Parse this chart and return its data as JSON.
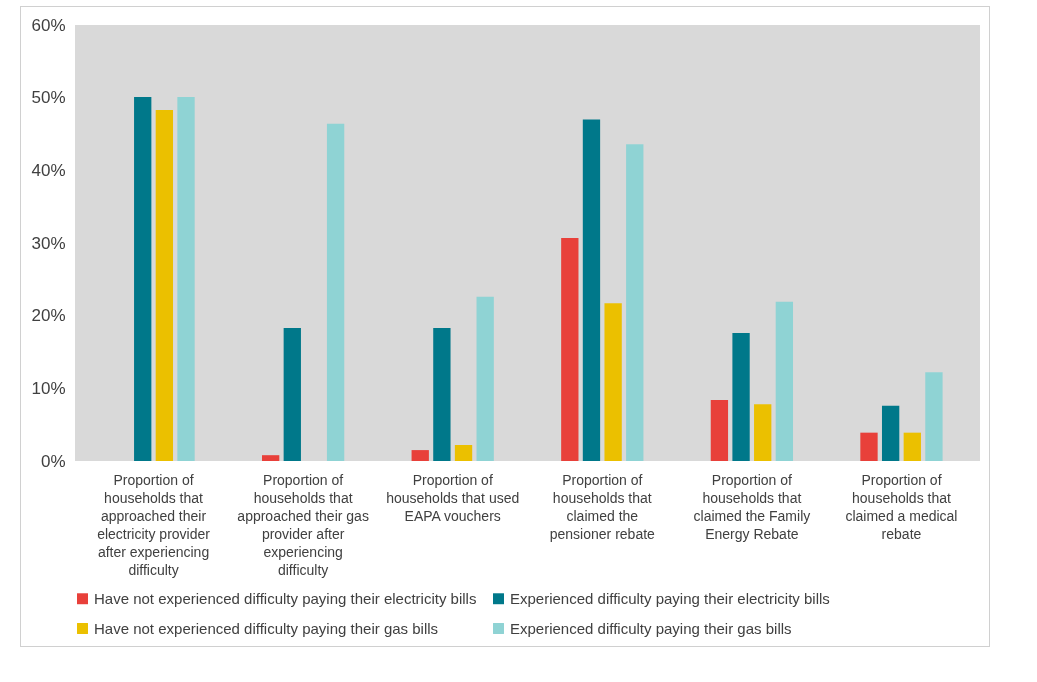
{
  "chart_data": {
    "type": "bar",
    "categories": [
      "Proportion of households that approached their electricity provider after experiencing difficulty",
      "Proportion of households that approached their gas provider after experiencing difficulty",
      "Proportion of households that used EAPA vouchers",
      "Proportion of households that claimed the pensioner rebate",
      "Proportion of households that claimed the Family Energy Rebate",
      "Proportion of households that claimed a medical rebate"
    ],
    "series": [
      {
        "name": "Have not experienced difficulty paying their electricity bills",
        "color": "#e8403a",
        "values": [
          null,
          0.8,
          1.5,
          30.7,
          8.4,
          3.9
        ]
      },
      {
        "name": "Experienced difficulty paying their electricity bills",
        "color": "#00788a",
        "values": [
          50.1,
          18.3,
          18.3,
          47.0,
          17.6,
          7.6
        ]
      },
      {
        "name": "Have not experienced difficulty paying their gas bills",
        "color": "#ebc000",
        "values": [
          48.3,
          null,
          2.2,
          21.7,
          7.8,
          3.9
        ]
      },
      {
        "name": "Experienced difficulty paying their gas bills",
        "color": "#8fd3d4",
        "values": [
          50.1,
          46.4,
          22.6,
          43.6,
          21.9,
          12.2
        ]
      }
    ],
    "ylim": [
      0,
      60
    ],
    "yticks": [
      {
        "value": 0,
        "label": "0%"
      },
      {
        "value": 10,
        "label": "10%"
      },
      {
        "value": 20,
        "label": "20%"
      },
      {
        "value": 30,
        "label": "30%"
      },
      {
        "value": 40,
        "label": "40%"
      },
      {
        "value": 50,
        "label": "50%"
      },
      {
        "value": 60,
        "label": "60%"
      }
    ],
    "grid": false,
    "legend": "bottom"
  }
}
